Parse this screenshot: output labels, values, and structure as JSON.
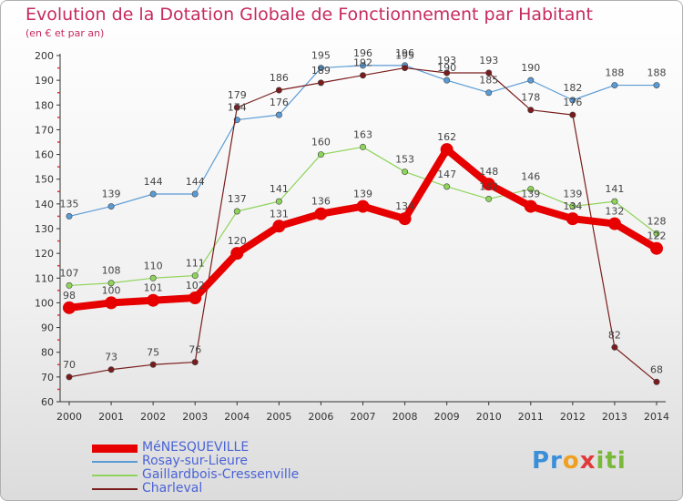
{
  "header": {
    "title": "Evolution de la Dotation Globale de Fonctionnement par Habitant",
    "subtitle": "(en € et par an)"
  },
  "logo": {
    "parts": [
      "Pr",
      "o",
      "x",
      "iti"
    ]
  },
  "chart_data": {
    "type": "line",
    "title": "Evolution de la Dotation Globale de Fonctionnement par Habitant",
    "subtitle": "(en € et par an)",
    "xlabel": "",
    "ylabel": "",
    "x": [
      2000,
      2001,
      2002,
      2003,
      2004,
      2005,
      2006,
      2007,
      2008,
      2009,
      2010,
      2011,
      2012,
      2013,
      2014
    ],
    "ylim": [
      60,
      200
    ],
    "yticks": [
      60,
      70,
      80,
      90,
      100,
      110,
      120,
      130,
      140,
      150,
      160,
      170,
      180,
      190,
      200
    ],
    "grid": false,
    "legend_position": "bottom-left",
    "series": [
      {
        "name": "MéNESQUEVILLE",
        "color": "#e60000",
        "width": 8,
        "marker": 7,
        "values": [
          98,
          100,
          101,
          102,
          120,
          131,
          136,
          139,
          134,
          162,
          148,
          139,
          134,
          132,
          122
        ]
      },
      {
        "name": "Rosay-sur-Lieure",
        "color": "#5a9bd5",
        "width": 1.2,
        "marker": 3.2,
        "values": [
          135,
          139,
          144,
          144,
          174,
          176,
          195,
          196,
          196,
          190,
          185,
          190,
          182,
          188,
          188
        ]
      },
      {
        "name": "Gaillardbois-Cressenville",
        "color": "#8fd45a",
        "width": 1.2,
        "marker": 3.2,
        "values": [
          107,
          108,
          110,
          111,
          137,
          141,
          160,
          163,
          153,
          147,
          142,
          146,
          139,
          141,
          128
        ]
      },
      {
        "name": "Charleval",
        "color": "#7a1c1c",
        "width": 1.2,
        "marker": 3.2,
        "values": [
          70,
          73,
          75,
          76,
          179,
          186,
          189,
          192,
          195,
          193,
          193,
          178,
          176,
          82,
          68
        ]
      }
    ]
  }
}
